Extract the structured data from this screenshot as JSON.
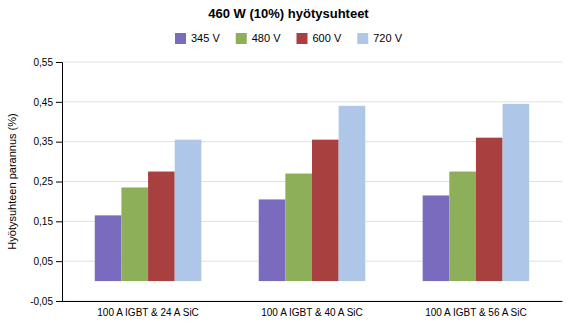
{
  "chart_data": {
    "type": "bar",
    "title": "460 W (10%) hyötysuhteet",
    "ylabel": "Hyötysuhteen parannus (%)",
    "categories": [
      "100 A IGBT & 24 A SiC",
      "100 A IGBT & 40 A SiC",
      "100 A IGBT & 56 A SiC"
    ],
    "series": [
      {
        "name": "345 V",
        "color": "#7b6bbf",
        "values": [
          0.165,
          0.205,
          0.215
        ]
      },
      {
        "name": "480 V",
        "color": "#8daf5a",
        "values": [
          0.235,
          0.27,
          0.275
        ]
      },
      {
        "name": "600 V",
        "color": "#a84040",
        "values": [
          0.275,
          0.355,
          0.36
        ]
      },
      {
        "name": "720 V",
        "color": "#aec6e8",
        "values": [
          0.355,
          0.44,
          0.445
        ]
      }
    ],
    "ylim": [
      -0.05,
      0.55
    ],
    "yticks": [
      {
        "value": -0.05,
        "label": "-0,05"
      },
      {
        "value": 0.05,
        "label": "0,05"
      },
      {
        "value": 0.15,
        "label": "0,15"
      },
      {
        "value": 0.25,
        "label": "0,25"
      },
      {
        "value": 0.35,
        "label": "0,35"
      },
      {
        "value": 0.45,
        "label": "0,45"
      },
      {
        "value": 0.55,
        "label": "0,55"
      }
    ],
    "grid": true,
    "legend": "top"
  }
}
